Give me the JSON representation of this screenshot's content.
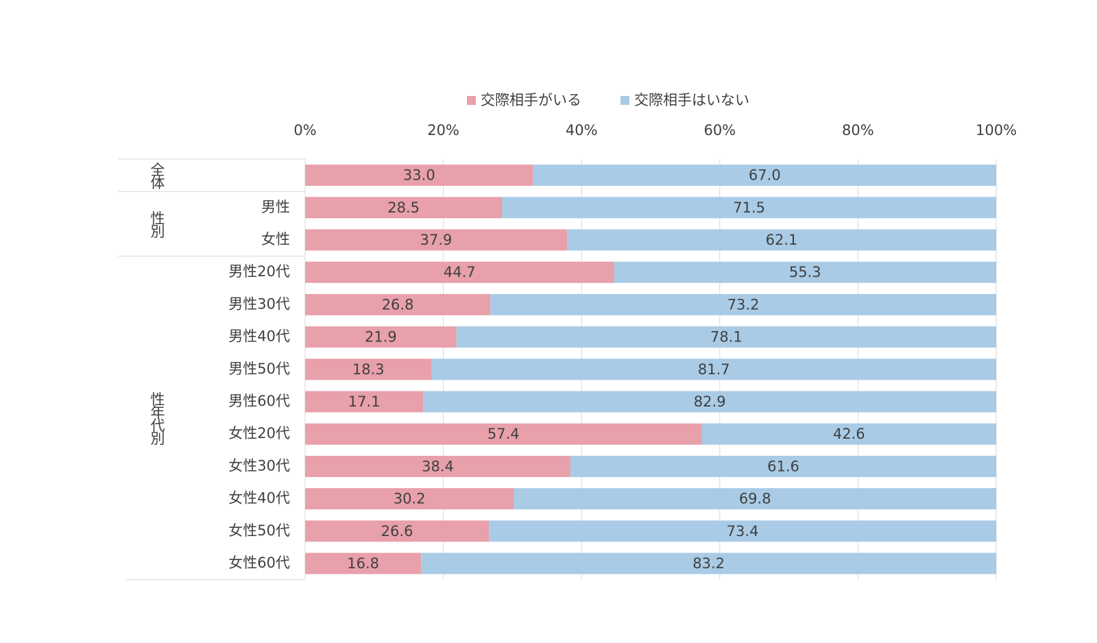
{
  "chart_data": {
    "type": "stacked-bar-horizontal",
    "categories": [
      null,
      "男性",
      "女性",
      "男性20代",
      "男性30代",
      "男性40代",
      "男性50代",
      "男性60代",
      "女性20代",
      "女性30代",
      "女性40代",
      "女性50代",
      "女性60代"
    ],
    "category_groups": [
      "全体",
      "性別",
      null,
      "性年代別",
      null,
      null,
      null,
      null,
      null,
      null,
      null,
      null,
      null
    ],
    "series": [
      {
        "name": "交際相手がいる",
        "color": "#e8a0ab",
        "values": [
          33.0,
          28.5,
          37.9,
          44.7,
          26.8,
          21.9,
          18.3,
          17.1,
          57.4,
          38.4,
          30.2,
          26.6,
          16.8
        ],
        "value_labels": [
          "33.0",
          "28.5",
          "37.9",
          "44.7",
          "26.8",
          "21.9",
          "18.3",
          "17.1",
          "57.4",
          "38.4",
          "30.2",
          "26.6",
          "16.8"
        ]
      },
      {
        "name": "交際相手はいない",
        "color": "#a9cbe6",
        "values": [
          67.0,
          71.5,
          62.1,
          55.3,
          73.2,
          78.1,
          81.7,
          82.9,
          42.6,
          61.6,
          69.8,
          73.4,
          83.2
        ],
        "value_labels": [
          "67.0",
          "71.5",
          "62.1",
          "55.3",
          "73.2",
          "78.1",
          "81.7",
          "82.9",
          "42.6",
          "61.6",
          "69.8",
          "73.4",
          "83.2"
        ]
      }
    ],
    "xlim": [
      0,
      100
    ],
    "xticks": [
      {
        "value": 0,
        "label": "0%"
      },
      {
        "value": 20,
        "label": "20%"
      },
      {
        "value": 40,
        "label": "40%"
      },
      {
        "value": 60,
        "label": "60%"
      },
      {
        "value": 80,
        "label": "80%"
      },
      {
        "value": 100,
        "label": "100%"
      }
    ],
    "grid": true,
    "legend": "top"
  }
}
